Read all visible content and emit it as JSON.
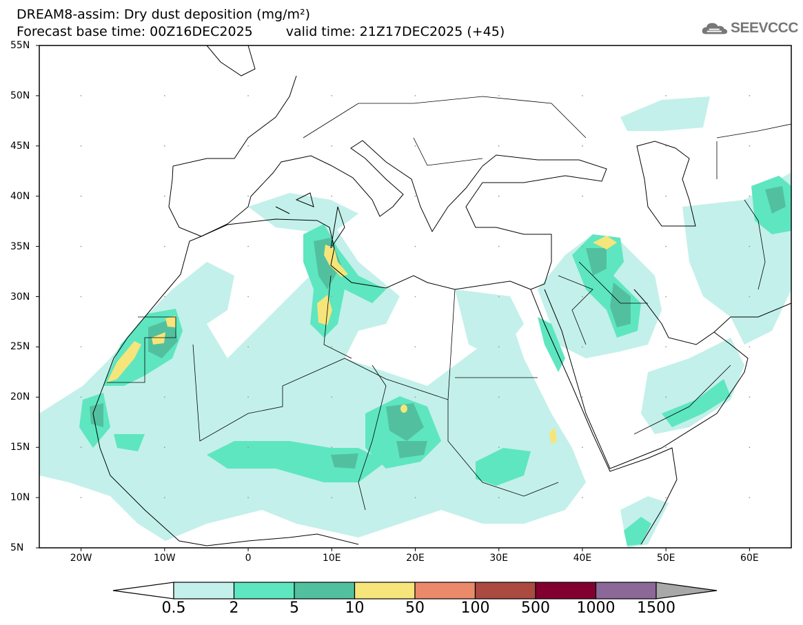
{
  "header": {
    "title": "DREAM8-assim: Dry dust deposition (mg/m²)",
    "base_time": "Forecast base time: 00Z16DEC2025",
    "valid_time": "valid time: 21Z17DEC2025 (+45)",
    "logo_text": "SEEVCCC"
  },
  "axes": {
    "lat_labels": [
      "55N",
      "50N",
      "45N",
      "40N",
      "35N",
      "30N",
      "25N",
      "20N",
      "15N",
      "10N",
      "5N"
    ],
    "lon_labels": [
      "20W",
      "10W",
      "0",
      "10E",
      "20E",
      "30E",
      "40E",
      "50E",
      "60E"
    ],
    "lon_range": [
      -25,
      65
    ],
    "lat_range": [
      5,
      55
    ]
  },
  "legend": {
    "labels": [
      "0.5",
      "2",
      "5",
      "10",
      "50",
      "100",
      "500",
      "1000",
      "1500"
    ],
    "colors": [
      "#c3f0ea",
      "#5ee6c0",
      "#52c09e",
      "#f6e57a",
      "#ea8a6a",
      "#aa4a41",
      "#820030",
      "#8b6898"
    ],
    "over_color": "#a8a8a8",
    "under_color": "#ffffff"
  }
}
